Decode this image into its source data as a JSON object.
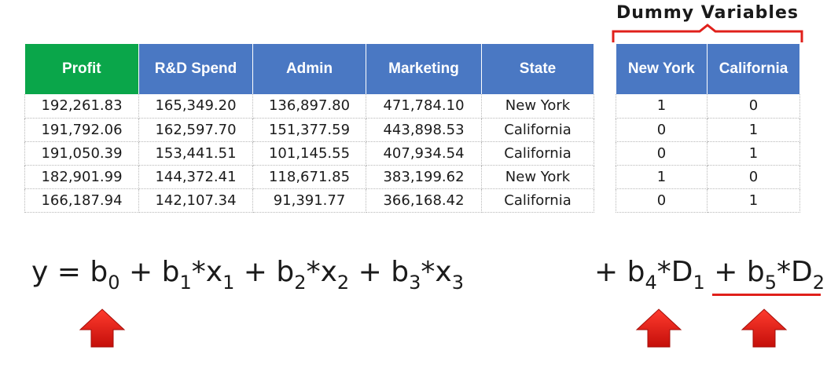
{
  "dummy_title": "Dummy Variables",
  "colors": {
    "profit_header": "#0aa64a",
    "header": "#4a78c3",
    "accent": "#e0201b"
  },
  "main_table": {
    "headers": [
      "Profit",
      "R&D Spend",
      "Admin",
      "Marketing",
      "State"
    ],
    "rows": [
      [
        "192,261.83",
        "165,349.20",
        "136,897.80",
        "471,784.10",
        "New York"
      ],
      [
        "191,792.06",
        "162,597.70",
        "151,377.59",
        "443,898.53",
        "California"
      ],
      [
        "191,050.39",
        "153,441.51",
        "101,145.55",
        "407,934.54",
        "California"
      ],
      [
        "182,901.99",
        "144,372.41",
        "118,671.85",
        "383,199.62",
        "New York"
      ],
      [
        "166,187.94",
        "142,107.34",
        "91,391.77",
        "366,168.42",
        "California"
      ]
    ]
  },
  "dummy_table": {
    "headers": [
      "New York",
      "California"
    ],
    "rows": [
      [
        "1",
        "0"
      ],
      [
        "0",
        "1"
      ],
      [
        "0",
        "1"
      ],
      [
        "1",
        "0"
      ],
      [
        "0",
        "1"
      ]
    ]
  },
  "equation": {
    "y": "y",
    "eq": "=",
    "plus": "+",
    "star": "*",
    "b": "b",
    "x": "x",
    "D": "D",
    "b0_sub": "0",
    "b1_sub": "1",
    "x1_sub": "1",
    "b2_sub": "2",
    "x2_sub": "2",
    "b3_sub": "3",
    "x3_sub": "3",
    "b4_sub": "4",
    "D1_sub": "1",
    "b5_sub": "5",
    "D2_sub": "2"
  },
  "arrows": [
    "up-arrow-icon",
    "up-arrow-icon",
    "up-arrow-icon"
  ]
}
